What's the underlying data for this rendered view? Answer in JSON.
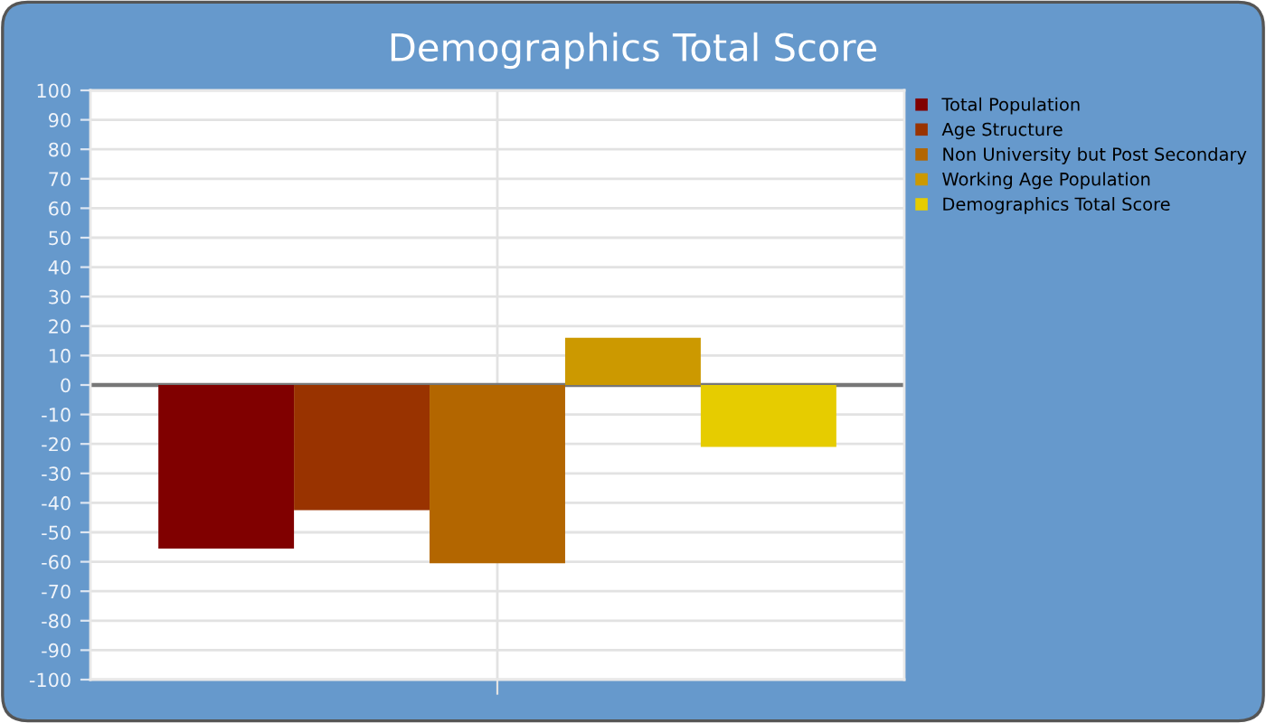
{
  "chart_data": {
    "type": "bar",
    "title": "Demographics Total Score",
    "categories": [
      null
    ],
    "series": [
      {
        "name": "Total Population",
        "color": "#800000",
        "values": [
          -55.5
        ]
      },
      {
        "name": "Age Structure",
        "color": "#993300",
        "values": [
          -42.5
        ]
      },
      {
        "name": "Non University but Post Secondary",
        "color": "#b36600",
        "values": [
          -60.5
        ]
      },
      {
        "name": "Working Age Population",
        "color": "#cc9900",
        "values": [
          16
        ]
      },
      {
        "name": "Demographics Total Score",
        "color": "#e6cc00",
        "values": [
          -21
        ]
      }
    ],
    "ylim": [
      -100,
      100
    ],
    "yticks": [
      -100,
      -90,
      -80,
      -70,
      -60,
      -50,
      -40,
      -30,
      -20,
      -10,
      0,
      10,
      20,
      30,
      40,
      50,
      60,
      70,
      80,
      90,
      100
    ],
    "grid": true,
    "legend": "right"
  }
}
